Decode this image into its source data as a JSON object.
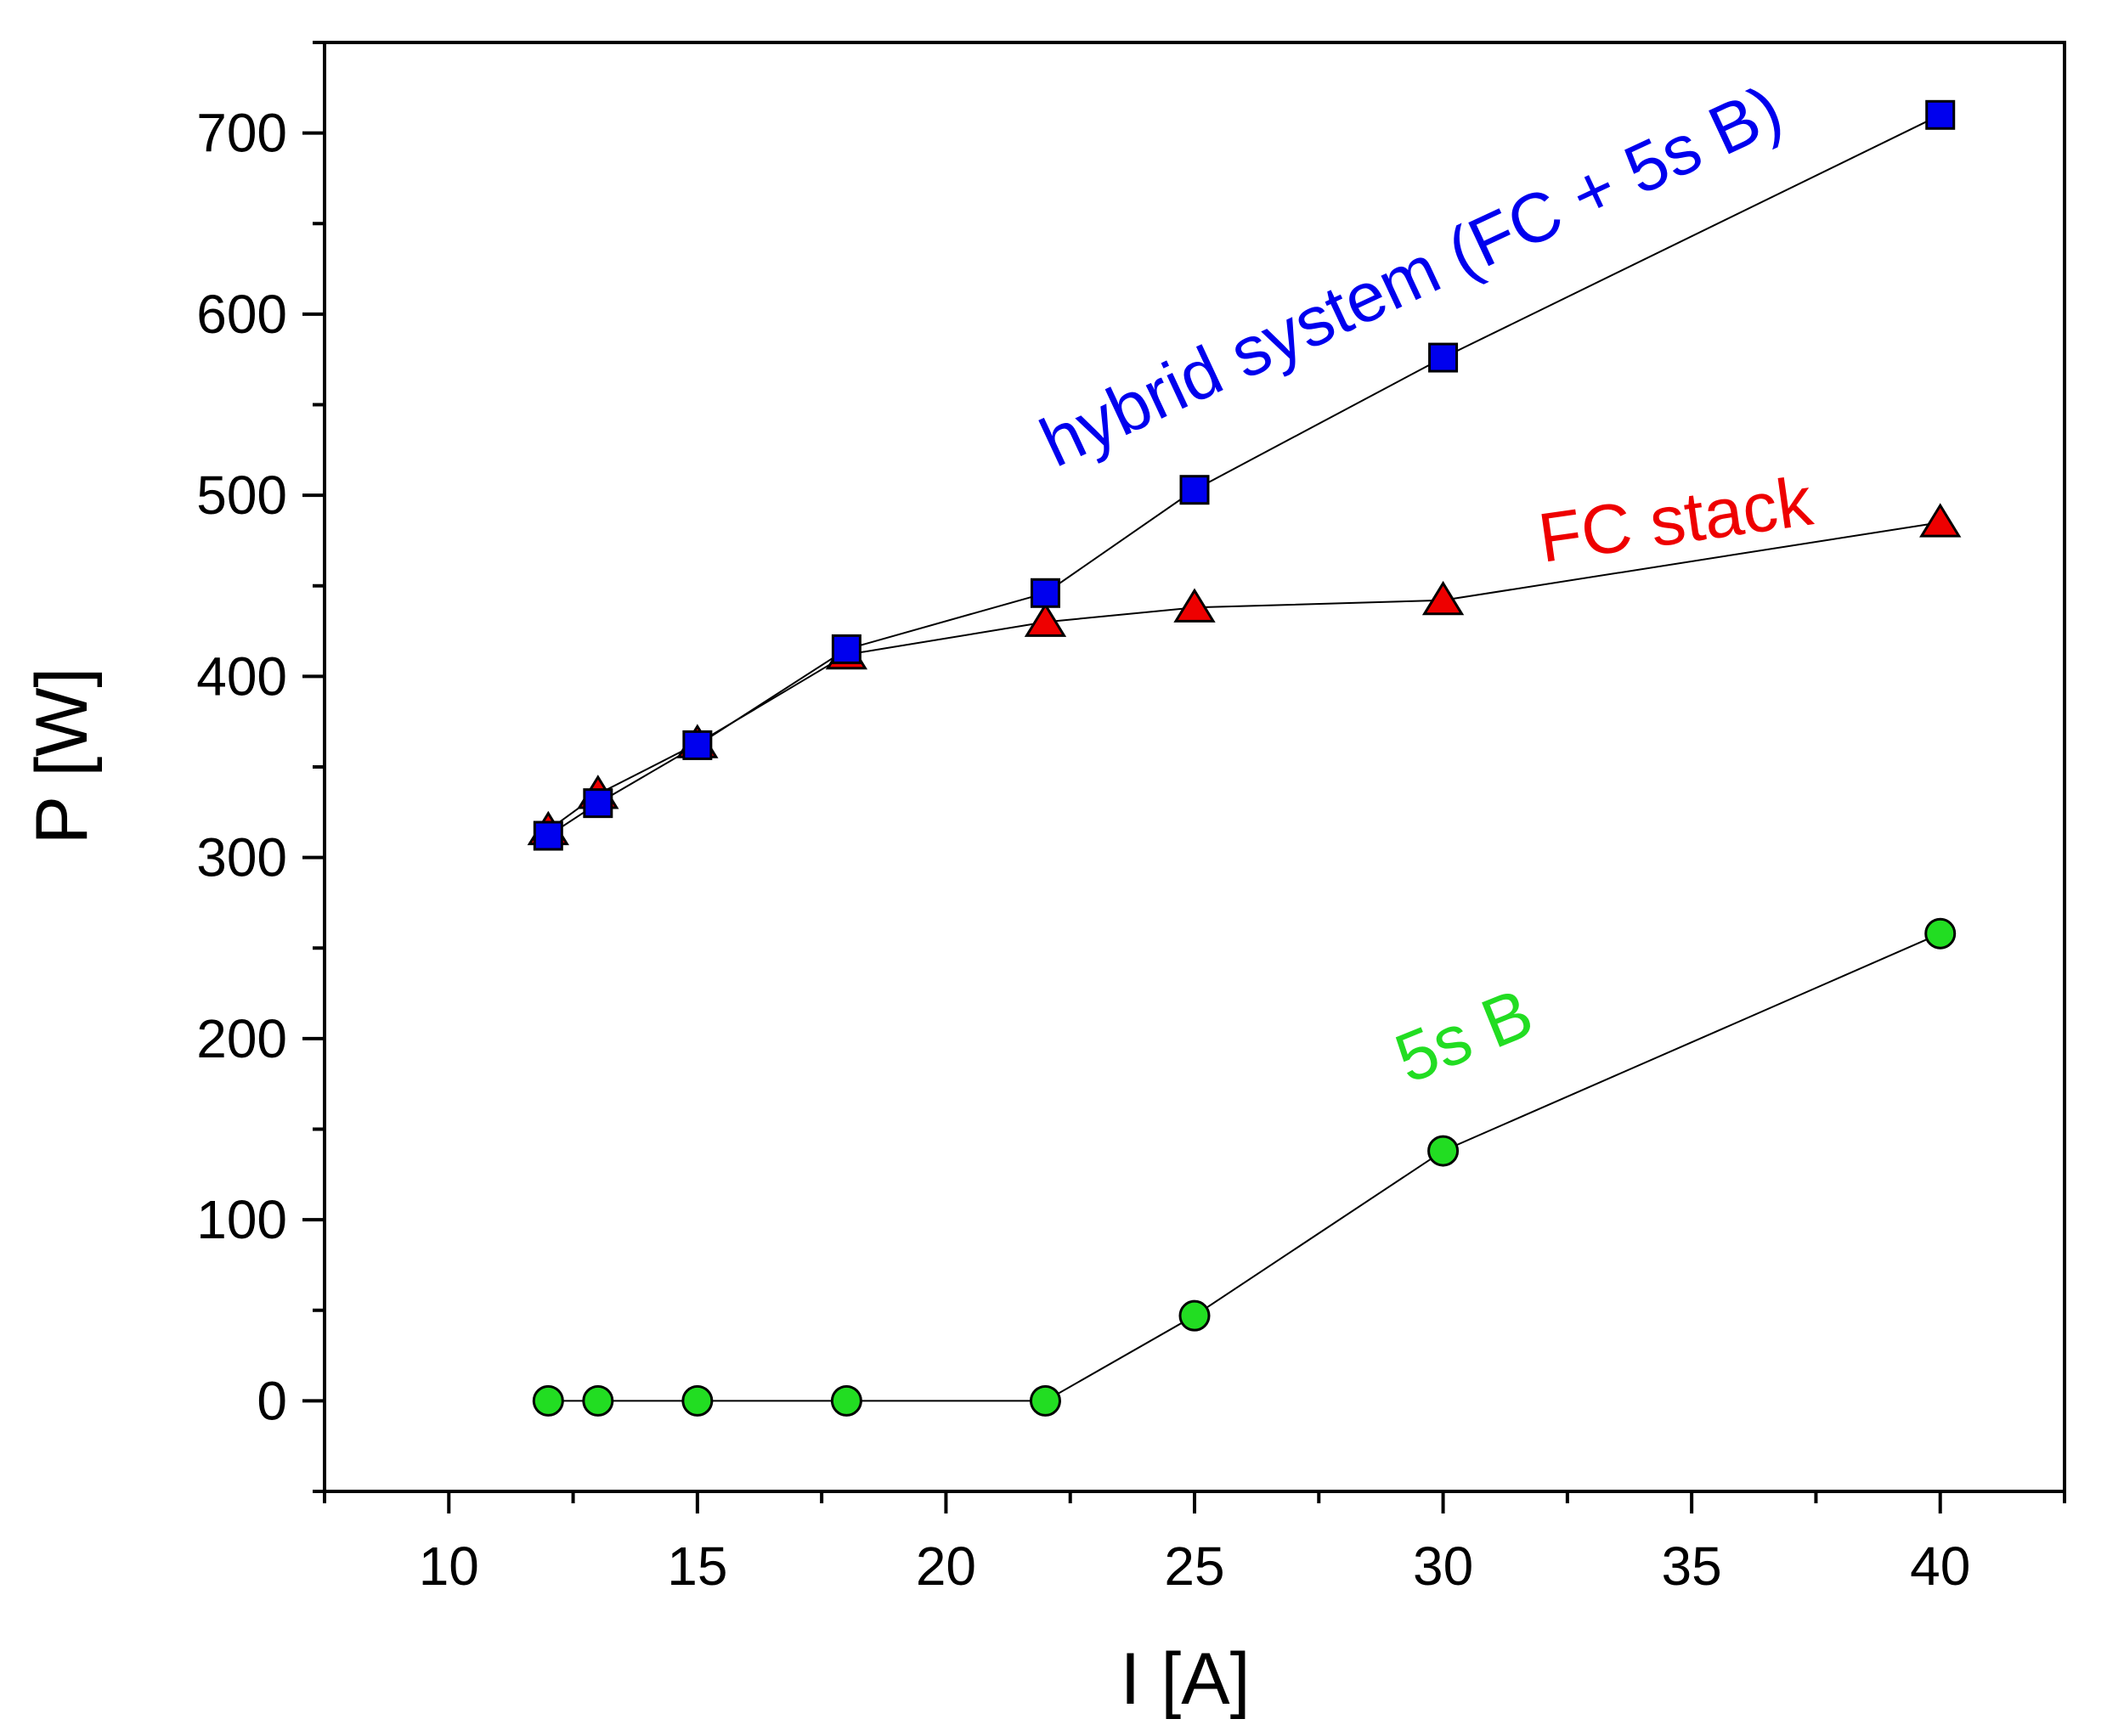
{
  "chart_data": {
    "type": "scatter",
    "title": "",
    "xlabel": "I [A]",
    "ylabel": "P [W]",
    "xlim": [
      7.5,
      42.5
    ],
    "ylim": [
      -50,
      750
    ],
    "xticks": [
      10,
      15,
      20,
      25,
      30,
      35,
      40
    ],
    "yticks": [
      0,
      100,
      200,
      300,
      400,
      500,
      600,
      700
    ],
    "x_minor_step": 2.5,
    "y_minor_step": 50,
    "grid": false,
    "legend": "none",
    "series": [
      {
        "name": "FC stack",
        "marker": "triangle",
        "color": "#ee0000",
        "x": [
          12,
          13,
          15,
          18,
          22,
          25,
          30,
          40
        ],
        "y": [
          315,
          335,
          363,
          412,
          430,
          438,
          442,
          485
        ]
      },
      {
        "name": "5s B",
        "marker": "circle",
        "color": "#22dd22",
        "x": [
          12,
          13,
          15,
          18,
          22,
          25,
          30,
          40
        ],
        "y": [
          0,
          0,
          0,
          0,
          0,
          47,
          138,
          258
        ]
      },
      {
        "name": "hybrid system (FC + 5s B)",
        "marker": "square",
        "color": "#0000ee",
        "x": [
          12,
          13,
          15,
          18,
          22,
          25,
          30,
          40
        ],
        "y": [
          312,
          330,
          362,
          415,
          446,
          503,
          576,
          710
        ]
      }
    ],
    "annotations": [
      {
        "text": "hybrid system (FC + 5s B)",
        "color": "#0000ee",
        "anchor_x": 22.2,
        "anchor_y": 515,
        "rotation": -25
      },
      {
        "text": "FC stack",
        "color": "#ee0000",
        "anchor_x": 32.0,
        "anchor_y": 463,
        "rotation": -8
      },
      {
        "text": "5s B",
        "color": "#22dd22",
        "anchor_x": 29.3,
        "anchor_y": 175,
        "rotation": -22
      }
    ]
  }
}
